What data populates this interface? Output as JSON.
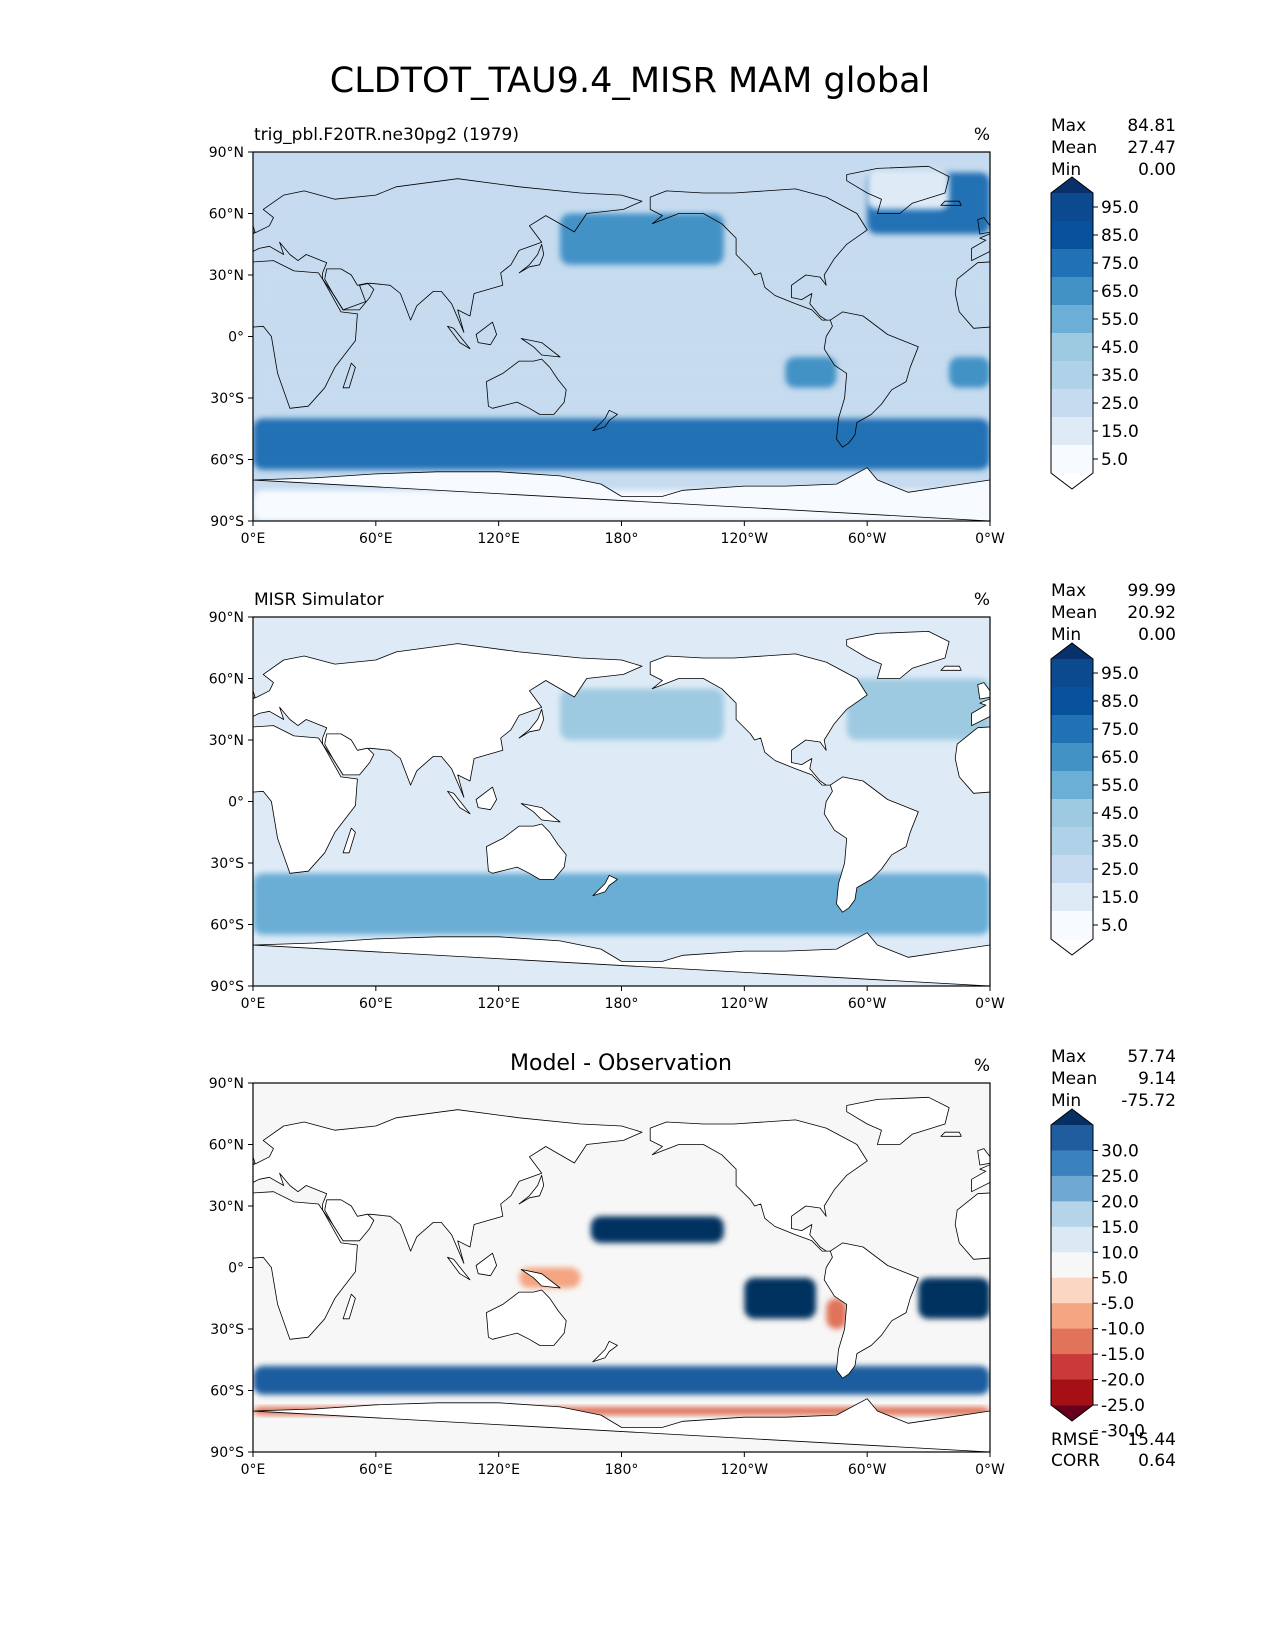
{
  "title": "CLDTOT_TAU9.4_MISR MAM global",
  "colors": {
    "blues": [
      "#f7fbff",
      "#deebf7",
      "#c6dbef",
      "#b0d2e8",
      "#9ecae1",
      "#6baed6",
      "#4292c6",
      "#2171b5",
      "#08519c",
      "#0b4a8f",
      "#08306b"
    ],
    "diff": [
      "#67001f",
      "#a50f15",
      "#cb3a3a",
      "#e0735a",
      "#f4a582",
      "#fbd6c3",
      "#f7f7f7",
      "#dbe9f3",
      "#b5d4e9",
      "#6fa8d2",
      "#3a82be",
      "#1f5d9f",
      "#053061"
    ]
  },
  "chart_data": [
    {
      "type": "heatmap",
      "panel": "test",
      "subtitle_left": "trig_pbl.F20TR.ne30pg2 (1979)",
      "units": "%",
      "stats": [
        [
          "Max",
          "84.81"
        ],
        [
          "Mean",
          "27.47"
        ],
        [
          "Min",
          "0.00"
        ]
      ],
      "colorbar_ticks": [
        "95.0",
        "85.0",
        "75.0",
        "65.0",
        "55.0",
        "45.0",
        "35.0",
        "25.0",
        "15.0",
        "5.0"
      ],
      "colorbar_levels": [
        0,
        5,
        10,
        20,
        30,
        40,
        50,
        60,
        70,
        80,
        90,
        100
      ],
      "xticks": [
        "0°E",
        "60°E",
        "120°E",
        "180°",
        "120°W",
        "60°W",
        "0°W"
      ],
      "yticks": [
        "90°N",
        "60°N",
        "30°N",
        "0°",
        "30°S",
        "60°S",
        "90°S"
      ],
      "xlim": [
        0,
        360
      ],
      "ylim": [
        -90,
        90
      ],
      "features": [
        {
          "name": "southern-storm-track",
          "lon": [
            0,
            360
          ],
          "lat": [
            -65,
            -40
          ],
          "value": 60
        },
        {
          "name": "arctic-north-atlantic-clouds",
          "lon": [
            300,
            360
          ],
          "lat": [
            50,
            80
          ],
          "value": 65
        },
        {
          "name": "north-pacific-clouds",
          "lon": [
            150,
            230
          ],
          "lat": [
            35,
            60
          ],
          "value": 50
        },
        {
          "name": "se-pacific-stratocumulus",
          "lon": [
            260,
            285
          ],
          "lat": [
            -25,
            -10
          ],
          "value": 55
        },
        {
          "name": "se-atlantic-stratocumulus",
          "lon": [
            340,
            360
          ],
          "lat": [
            -25,
            -10
          ],
          "value": 55
        },
        {
          "name": "greenland-clear",
          "lon": [
            300,
            340
          ],
          "lat": [
            62,
            82
          ],
          "value": 5
        },
        {
          "name": "antarctica-clear",
          "lon": [
            0,
            360
          ],
          "lat": [
            -90,
            -75
          ],
          "value": 3
        }
      ]
    },
    {
      "type": "heatmap",
      "panel": "reference",
      "subtitle_left": "MISR Simulator",
      "units": "%",
      "stats": [
        [
          "Max",
          "99.99"
        ],
        [
          "Mean",
          "20.92"
        ],
        [
          "Min",
          "0.00"
        ]
      ],
      "colorbar_ticks": [
        "95.0",
        "85.0",
        "75.0",
        "65.0",
        "55.0",
        "45.0",
        "35.0",
        "25.0",
        "15.0",
        "5.0"
      ],
      "colorbar_levels": [
        0,
        5,
        10,
        20,
        30,
        40,
        50,
        60,
        70,
        80,
        90,
        100
      ],
      "xticks": [
        "0°E",
        "60°E",
        "120°E",
        "180°",
        "120°W",
        "60°W",
        "0°W"
      ],
      "yticks": [
        "90°N",
        "60°N",
        "30°N",
        "0°",
        "30°S",
        "60°S",
        "90°S"
      ],
      "xlim": [
        0,
        360
      ],
      "ylim": [
        -90,
        90
      ],
      "land_masked": true,
      "features": [
        {
          "name": "southern-ocean-clouds",
          "lon": [
            0,
            360
          ],
          "lat": [
            -65,
            -35
          ],
          "value": 40
        },
        {
          "name": "north-pacific-clouds",
          "lon": [
            150,
            230
          ],
          "lat": [
            30,
            55
          ],
          "value": 35
        },
        {
          "name": "north-atlantic-clouds",
          "lon": [
            290,
            360
          ],
          "lat": [
            30,
            60
          ],
          "value": 30
        }
      ]
    },
    {
      "type": "heatmap",
      "panel": "difference",
      "title": "Model - Observation",
      "units": "%",
      "stats": [
        [
          "Max",
          "57.74"
        ],
        [
          "Mean",
          "9.14"
        ],
        [
          "Min",
          "-75.72"
        ]
      ],
      "colorbar_ticks": [
        "30.0",
        "25.0",
        "20.0",
        "15.0",
        "10.0",
        "5.0",
        "-5.0",
        "-10.0",
        "-15.0",
        "-20.0",
        "-25.0",
        "-30.0"
      ],
      "colorbar_levels": [
        -35,
        -30,
        -25,
        -20,
        -15,
        -10,
        -5,
        5,
        10,
        15,
        20,
        25,
        30,
        35
      ],
      "rmse": "15.44",
      "corr": "0.64",
      "xticks": [
        "0°E",
        "60°E",
        "120°E",
        "180°",
        "120°W",
        "60°W",
        "0°W"
      ],
      "yticks": [
        "90°N",
        "60°N",
        "30°N",
        "0°",
        "30°S",
        "60°S",
        "90°S"
      ],
      "xlim": [
        0,
        360
      ],
      "ylim": [
        -90,
        90
      ],
      "land_masked": true,
      "features": [
        {
          "name": "se-pacific-positive",
          "lon": [
            240,
            275
          ],
          "lat": [
            -25,
            -5
          ],
          "value": 35
        },
        {
          "name": "se-atlantic-positive",
          "lon": [
            325,
            360
          ],
          "lat": [
            -25,
            -5
          ],
          "value": 35
        },
        {
          "name": "subtropical-north-pacific-positive",
          "lon": [
            165,
            230
          ],
          "lat": [
            12,
            25
          ],
          "value": 30
        },
        {
          "name": "southern-ocean-positive",
          "lon": [
            0,
            360
          ],
          "lat": [
            -62,
            -48
          ],
          "value": 25
        },
        {
          "name": "maritime-continent-negative",
          "lon": [
            130,
            160
          ],
          "lat": [
            -10,
            0
          ],
          "value": -12
        },
        {
          "name": "peru-coast-negative",
          "lon": [
            280,
            290
          ],
          "lat": [
            -30,
            -15
          ],
          "value": -20
        },
        {
          "name": "antarctic-coast-negative",
          "lon": [
            0,
            360
          ],
          "lat": [
            -72,
            -68
          ],
          "value": -20
        }
      ]
    }
  ]
}
